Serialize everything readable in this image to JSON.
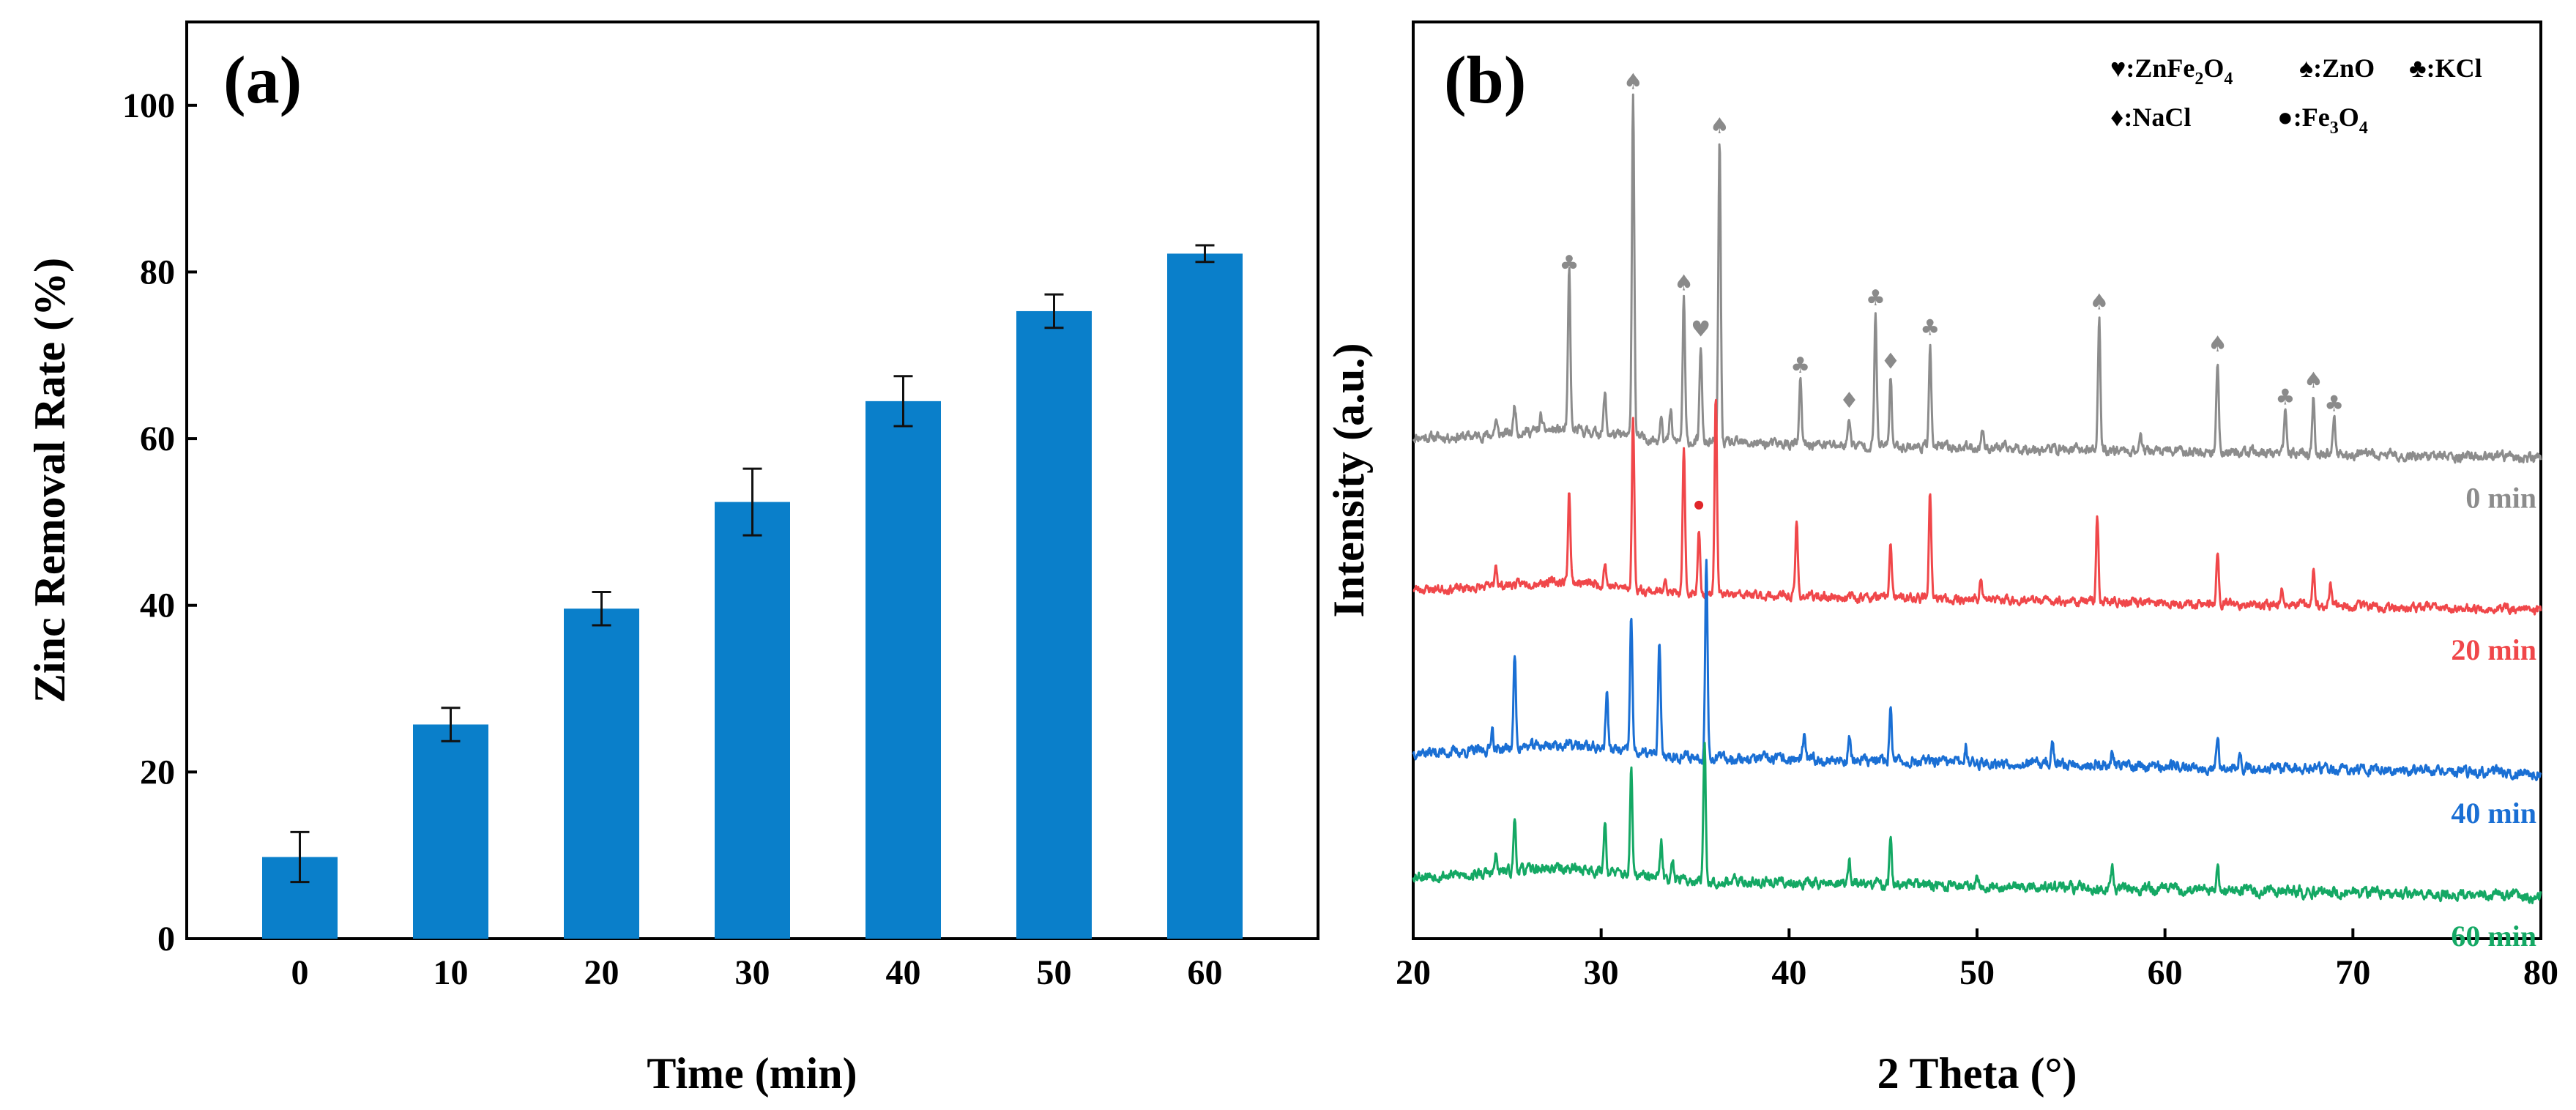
{
  "chart_data": [
    {
      "type": "bar",
      "panel": "(a)",
      "xlabel": "Time (min)",
      "ylabel": "Zinc Removal Rate (%)",
      "categories": [
        "0",
        "10",
        "20",
        "30",
        "40",
        "50",
        "60"
      ],
      "values": [
        9.8,
        25.7,
        39.6,
        52.4,
        64.5,
        75.3,
        82.2
      ],
      "errors": [
        3.0,
        2.0,
        2.0,
        4.0,
        3.0,
        2.0,
        1.0
      ],
      "ylim": [
        0,
        110
      ],
      "yticks": [
        "0",
        "20",
        "40",
        "60",
        "80",
        "100"
      ],
      "bar_color": "#0a7fca"
    },
    {
      "type": "line",
      "panel": "(b)",
      "xlabel": "2 Theta (°)",
      "ylabel": "Intensity (a.u.)",
      "xlim": [
        20,
        80
      ],
      "xticks": [
        "20",
        "30",
        "40",
        "50",
        "60",
        "70",
        "80"
      ],
      "series": [
        {
          "name": "0 min",
          "color": "#8c8c8c",
          "baseline": 17.5,
          "noise": 0.28,
          "seed": 11,
          "peaks": [
            [
              24.4,
              0.5
            ],
            [
              25.4,
              1.0
            ],
            [
              26.8,
              0.5
            ],
            [
              28.3,
              5.6
            ],
            [
              30.2,
              1.4
            ],
            [
              31.7,
              12.0
            ],
            [
              33.2,
              1.0
            ],
            [
              33.7,
              1.0
            ],
            [
              34.4,
              5.0
            ],
            [
              35.3,
              3.4
            ],
            [
              36.3,
              10.5
            ],
            [
              40.6,
              2.2
            ],
            [
              43.2,
              1.0
            ],
            [
              44.6,
              4.6
            ],
            [
              45.4,
              2.4
            ],
            [
              47.5,
              3.6
            ],
            [
              50.3,
              0.7
            ],
            [
              56.5,
              4.6
            ],
            [
              58.7,
              0.6
            ],
            [
              62.8,
              3.2
            ],
            [
              66.4,
              1.4
            ],
            [
              67.9,
              2.0
            ],
            [
              69.0,
              1.2
            ]
          ]
        },
        {
          "name": "20 min",
          "color": "#f0474a",
          "baseline": 12.2,
          "noise": 0.25,
          "seed": 23,
          "peaks": [
            [
              24.4,
              0.8
            ],
            [
              28.3,
              3.2
            ],
            [
              30.2,
              0.8
            ],
            [
              31.7,
              6.0
            ],
            [
              33.4,
              0.6
            ],
            [
              34.4,
              5.0
            ],
            [
              35.2,
              2.4
            ],
            [
              36.1,
              7.0
            ],
            [
              40.4,
              2.6
            ],
            [
              45.4,
              2.0
            ],
            [
              47.5,
              3.6
            ],
            [
              50.2,
              0.8
            ],
            [
              56.4,
              3.0
            ],
            [
              62.8,
              1.8
            ],
            [
              66.2,
              0.6
            ],
            [
              67.9,
              1.2
            ],
            [
              68.8,
              0.8
            ]
          ]
        },
        {
          "name": "40 min",
          "color": "#1a6fd4",
          "baseline": 6.5,
          "noise": 0.3,
          "seed": 37,
          "peaks": [
            [
              24.2,
              0.8
            ],
            [
              25.4,
              3.2
            ],
            [
              30.3,
              2.0
            ],
            [
              31.6,
              4.8
            ],
            [
              33.1,
              4.0
            ],
            [
              35.6,
              7.0
            ],
            [
              40.8,
              0.8
            ],
            [
              43.2,
              0.8
            ],
            [
              45.4,
              2.0
            ],
            [
              49.4,
              0.6
            ],
            [
              54.0,
              0.8
            ],
            [
              57.2,
              0.5
            ],
            [
              62.8,
              1.0
            ],
            [
              64.0,
              0.6
            ]
          ]
        },
        {
          "name": "60 min",
          "color": "#14a864",
          "baseline": 2.2,
          "noise": 0.3,
          "seed": 53,
          "peaks": [
            [
              24.4,
              0.6
            ],
            [
              25.4,
              1.8
            ],
            [
              30.2,
              1.8
            ],
            [
              31.6,
              3.6
            ],
            [
              33.2,
              1.2
            ],
            [
              33.8,
              0.8
            ],
            [
              35.5,
              4.8
            ],
            [
              43.2,
              0.8
            ],
            [
              45.4,
              1.5
            ],
            [
              50.0,
              0.5
            ],
            [
              57.2,
              0.6
            ],
            [
              62.8,
              0.8
            ]
          ]
        }
      ],
      "legend": [
        {
          "symbol": "♥",
          "label": ":ZnFe",
          "sub": "2",
          "label2": "O",
          "sub2": "4"
        },
        {
          "symbol": "♠",
          "label": ":ZnO"
        },
        {
          "symbol": "♣",
          "label": ":KCl"
        },
        {
          "symbol": "♦",
          "label": ":NaCl"
        },
        {
          "symbol": "●",
          "label": ":Fe",
          "sub": "3",
          "label2": "O",
          "sub2": "4"
        }
      ],
      "markers": [
        {
          "symbol": "♣",
          "x": 28.3
        },
        {
          "symbol": "♠",
          "x": 31.7
        },
        {
          "symbol": "♠",
          "x": 34.4
        },
        {
          "symbol": "♥",
          "x": 35.3
        },
        {
          "symbol": "♠",
          "x": 36.3
        },
        {
          "symbol": "♣",
          "x": 40.6
        },
        {
          "symbol": "♦",
          "x": 43.2
        },
        {
          "symbol": "♣",
          "x": 44.6
        },
        {
          "symbol": "♦",
          "x": 45.4
        },
        {
          "symbol": "♣",
          "x": 47.5
        },
        {
          "symbol": "♠",
          "x": 56.5
        },
        {
          "symbol": "♠",
          "x": 62.8
        },
        {
          "symbol": "♣",
          "x": 66.4
        },
        {
          "symbol": "♠",
          "x": 67.9
        },
        {
          "symbol": "♣",
          "x": 69.0
        }
      ],
      "fe3o4_marker": {
        "x": 35.2,
        "color": "#e0262a"
      }
    }
  ]
}
